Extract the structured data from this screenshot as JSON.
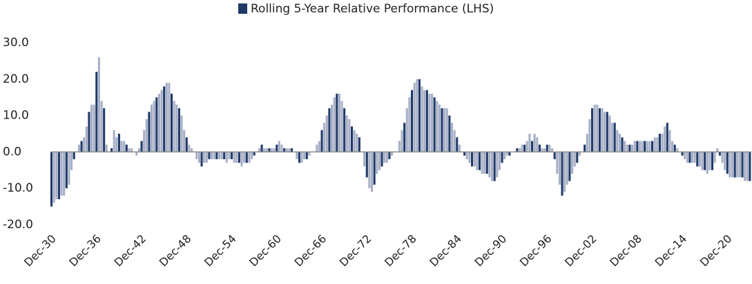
{
  "chart_data": {
    "type": "bar",
    "categories": [
      "Dec-30",
      null,
      null,
      null,
      null,
      null,
      null,
      null,
      null,
      null,
      null,
      null,
      null,
      null,
      null,
      null,
      null,
      null,
      "Dec-36",
      null,
      null,
      null,
      null,
      null,
      null,
      null,
      null,
      null,
      null,
      null,
      null,
      null,
      null,
      null,
      null,
      null,
      "Dec-42",
      null,
      null,
      null,
      null,
      null,
      null,
      null,
      null,
      null,
      null,
      null,
      null,
      null,
      null,
      null,
      null,
      null,
      "Dec-48",
      null,
      null,
      null,
      null,
      null,
      null,
      null,
      null,
      null,
      null,
      null,
      null,
      null,
      null,
      null,
      null,
      null,
      "Dec-54",
      null,
      null,
      null,
      null,
      null,
      null,
      null,
      null,
      null,
      null,
      null,
      null,
      null,
      null,
      null,
      null,
      null,
      "Dec-60",
      null,
      null,
      null,
      null,
      null,
      null,
      null,
      null,
      null,
      null,
      null,
      null,
      null,
      null,
      null,
      null,
      null,
      "Dec-66",
      null,
      null,
      null,
      null,
      null,
      null,
      null,
      null,
      null,
      null,
      null,
      null,
      null,
      null,
      null,
      null,
      null,
      "Dec-72",
      null,
      null,
      null,
      null,
      null,
      null,
      null,
      null,
      null,
      null,
      null,
      null,
      null,
      null,
      null,
      null,
      null,
      "Dec-78",
      null,
      null,
      null,
      null,
      null,
      null,
      null,
      null,
      null,
      null,
      null,
      null,
      null,
      null,
      null,
      null,
      null,
      "Dec-84",
      null,
      null,
      null,
      null,
      null,
      null,
      null,
      null,
      null,
      null,
      null,
      null,
      null,
      null,
      null,
      null,
      null,
      "Dec-90",
      null,
      null,
      null,
      null,
      null,
      null,
      null,
      null,
      null,
      null,
      null,
      null,
      null,
      null,
      null,
      null,
      null,
      "Dec-96",
      null,
      null,
      null,
      null,
      null,
      null,
      null,
      null,
      null,
      null,
      null,
      null,
      null,
      null,
      null,
      null,
      null,
      "Dec-02",
      null,
      null,
      null,
      null,
      null,
      null,
      null,
      null,
      null,
      null,
      null,
      null,
      null,
      null,
      null,
      null,
      null,
      "Dec-08",
      null,
      null,
      null,
      null,
      null,
      null,
      null,
      null,
      null,
      null,
      null,
      null,
      null,
      null,
      null,
      null,
      null,
      "Dec-14",
      null,
      null,
      null,
      null,
      null,
      null,
      null,
      null,
      null,
      null,
      null,
      null,
      null,
      null,
      null,
      null,
      null,
      "Dec-20",
      null,
      null,
      null,
      null,
      null,
      null,
      null,
      null,
      null
    ],
    "series": [
      {
        "name": "Rolling 5-Year Relative Performance (LHS)",
        "color": "#1f3a68",
        "alt_color": "#a7afc6",
        "values": [
          -15,
          -14,
          -13,
          -13,
          -12,
          -12,
          -10,
          -9,
          -5,
          -2,
          0,
          2,
          3,
          4,
          7,
          11,
          13,
          13,
          22,
          26,
          14,
          12,
          2,
          0,
          1,
          6,
          4,
          5,
          3,
          3,
          2,
          1,
          1,
          0,
          -1,
          1,
          3,
          6,
          9,
          11,
          13,
          14,
          15,
          16,
          17,
          18,
          19,
          19,
          16,
          14,
          13,
          12,
          10,
          6,
          4,
          2,
          1,
          0,
          -2,
          -3,
          -4,
          -3,
          -3,
          -2,
          -2,
          -2,
          -2,
          -2,
          -2,
          -2,
          -3,
          -2,
          -2,
          -3,
          -3,
          -3,
          -4,
          -3,
          -3,
          -3,
          -2,
          -1,
          0,
          1,
          2,
          1,
          1,
          1,
          1,
          1,
          2,
          3,
          2,
          1,
          1,
          1,
          1,
          0,
          -2,
          -3,
          -3,
          -2,
          -2,
          -1,
          0,
          0,
          2,
          3,
          6,
          8,
          10,
          12,
          13,
          15,
          16,
          16,
          14,
          12,
          10,
          9,
          7,
          6,
          5,
          4,
          0,
          -4,
          -7,
          -10,
          -11,
          -9,
          -6,
          -5,
          -4,
          -3,
          -3,
          -2,
          -1,
          0,
          0,
          3,
          6,
          8,
          12,
          15,
          17,
          19,
          20,
          20,
          18,
          17,
          17,
          16,
          16,
          15,
          14,
          13,
          12,
          12,
          12,
          10,
          8,
          6,
          4,
          2,
          0,
          -1,
          -2,
          -3,
          -4,
          -4,
          -5,
          -5,
          -6,
          -6,
          -6,
          -7,
          -8,
          -8,
          -7,
          -5,
          -3,
          -2,
          -1,
          -1,
          0,
          0,
          1,
          1,
          2,
          2,
          3,
          5,
          3,
          5,
          4,
          2,
          1,
          1,
          2,
          2,
          1,
          -2,
          -6,
          -9,
          -12,
          -11,
          -9,
          -8,
          -6,
          -4,
          -3,
          -1,
          0,
          2,
          5,
          9,
          12,
          13,
          13,
          12,
          12,
          11,
          11,
          10,
          8,
          8,
          6,
          5,
          4,
          3,
          2,
          2,
          2,
          3,
          3,
          3,
          3,
          3,
          3,
          3,
          3,
          4,
          4,
          5,
          5,
          7,
          8,
          6,
          3,
          2,
          1,
          0,
          -1,
          -2,
          -3,
          -3,
          -3,
          -3,
          -4,
          -4,
          -5,
          -5,
          -6,
          -5,
          -5,
          -3,
          1,
          -1,
          -3,
          -5,
          -6,
          -7,
          -7,
          -7,
          -7,
          -7,
          -7,
          -8,
          -8,
          -8
        ]
      }
    ],
    "ylim": [
      -20,
      30
    ],
    "yticks": [
      {
        "value": -20,
        "label": "-20.0"
      },
      {
        "value": -10,
        "label": "-10.0"
      },
      {
        "value": 0,
        "label": "0.0"
      },
      {
        "value": 10,
        "label": "10.0"
      },
      {
        "value": 20,
        "label": "20.0"
      },
      {
        "value": 30,
        "label": "30.0"
      }
    ],
    "grid": false,
    "legend": "top"
  }
}
